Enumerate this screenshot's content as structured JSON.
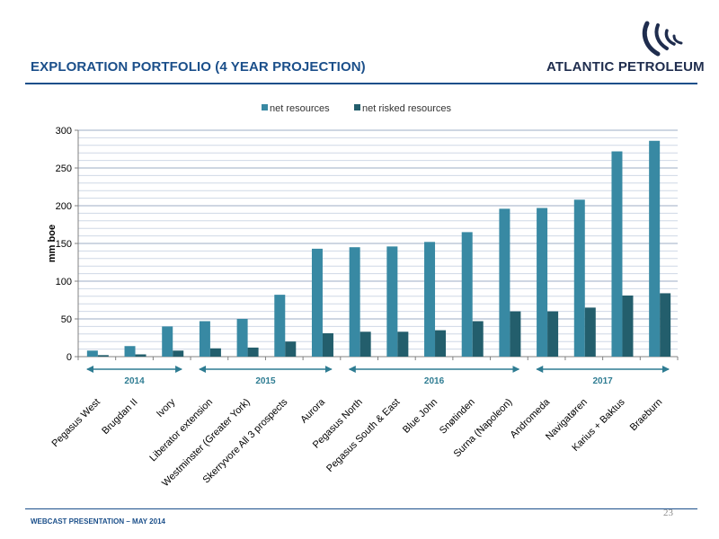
{
  "header": {
    "title": "EXPLORATION PORTFOLIO (4 YEAR PROJECTION)",
    "logo_text": "ATLANTIC PETROLEUM"
  },
  "footer": {
    "text": "WEBCAST PRESENTATION – MAY 2014",
    "page_number": "23"
  },
  "colors": {
    "net": "#3889a3",
    "risked": "#235e6c",
    "brand": "#1b4f8a",
    "period": "#2e7c92"
  },
  "periods": [
    {
      "label": "2014",
      "from": 0,
      "to": 2
    },
    {
      "label": "2015",
      "from": 3,
      "to": 6
    },
    {
      "label": "2016",
      "from": 7,
      "to": 11
    },
    {
      "label": "2017",
      "from": 12,
      "to": 15
    }
  ],
  "chart_data": {
    "type": "bar",
    "categories": [
      "Pegasus West",
      "Brugdan II",
      "Ivory",
      "Liberator extension",
      "Westminster (Greater York)",
      "Skerryvore All 3 prospects",
      "Aurora",
      "Pegasus North",
      "Pegasus South & East",
      "Blue John",
      "Snøtinden",
      "Surna (Napoleon)",
      "Andromeda",
      "Navigatøren",
      "Karius + Baktus",
      "Braeburn"
    ],
    "series": [
      {
        "name": "net resources",
        "values": [
          8,
          14,
          40,
          47,
          50,
          82,
          143,
          145,
          146,
          152,
          165,
          196,
          197,
          208,
          272,
          286
        ]
      },
      {
        "name": "net risked resources",
        "values": [
          2,
          3,
          8,
          11,
          12,
          20,
          31,
          33,
          33,
          35,
          47,
          60,
          60,
          65,
          81,
          84
        ]
      }
    ],
    "xlabel": "",
    "ylabel": "mm boe",
    "ylim": [
      0,
      300
    ],
    "yticks": [
      0,
      50,
      100,
      150,
      200,
      250,
      300
    ],
    "grid": true,
    "legend": "top-center"
  }
}
